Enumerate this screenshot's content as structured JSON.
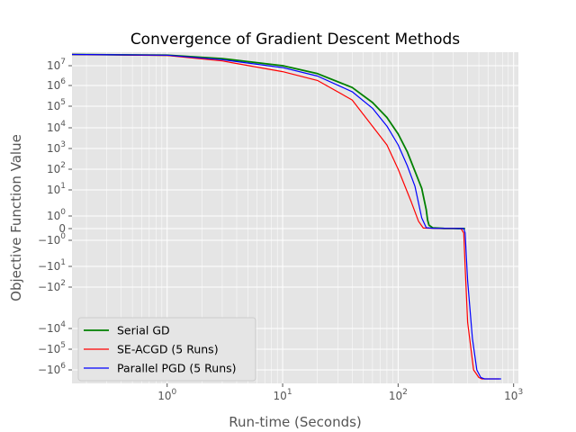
{
  "chart_data": {
    "type": "line",
    "title": "Convergence of Gradient Descent Methods",
    "xlabel": "Run-time (Seconds)",
    "ylabel": "Objective Function Value",
    "x_scale": "log",
    "y_scale": "symlog",
    "xlim": [
      0.15,
      1100
    ],
    "x_ticks": [
      {
        "value": 1,
        "base": "10",
        "exp": "0"
      },
      {
        "value": 10,
        "base": "10",
        "exp": "1"
      },
      {
        "value": 100,
        "base": "10",
        "exp": "2"
      },
      {
        "value": 1000,
        "base": "10",
        "exp": "3"
      }
    ],
    "y_ticks": [
      {
        "value": 10000000,
        "sign": "",
        "base": "10",
        "exp": "7"
      },
      {
        "value": 1000000,
        "sign": "",
        "base": "10",
        "exp": "6"
      },
      {
        "value": 100000,
        "sign": "",
        "base": "10",
        "exp": "5"
      },
      {
        "value": 10000,
        "sign": "",
        "base": "10",
        "exp": "4"
      },
      {
        "value": 1000,
        "sign": "",
        "base": "10",
        "exp": "3"
      },
      {
        "value": 100,
        "sign": "",
        "base": "10",
        "exp": "2"
      },
      {
        "value": 10,
        "sign": "",
        "base": "10",
        "exp": "1"
      },
      {
        "value": 1,
        "sign": "",
        "base": "10",
        "exp": "0"
      },
      {
        "value": 0,
        "plain": "0"
      },
      {
        "value": -1,
        "sign": "−",
        "base": "10",
        "exp": "0"
      },
      {
        "value": -10,
        "sign": "−",
        "base": "10",
        "exp": "1"
      },
      {
        "value": -100,
        "sign": "−",
        "base": "10",
        "exp": "2"
      },
      {
        "value": -10000,
        "sign": "−",
        "base": "10",
        "exp": "4"
      },
      {
        "value": -100000,
        "sign": "−",
        "base": "10",
        "exp": "5"
      },
      {
        "value": -1000000,
        "sign": "−",
        "base": "10",
        "exp": "6"
      }
    ],
    "grid": true,
    "legend_position": "lower-left",
    "series": [
      {
        "name": "Serial GD",
        "color": "#008000",
        "points": [
          [
            0.15,
            30000000
          ],
          [
            1,
            28000000
          ],
          [
            3,
            20000000
          ],
          [
            10,
            10000000
          ],
          [
            20,
            4000000
          ],
          [
            40,
            800000
          ],
          [
            60,
            150000
          ],
          [
            80,
            30000
          ],
          [
            100,
            5000
          ],
          [
            120,
            700
          ],
          [
            140,
            80
          ],
          [
            160,
            12
          ],
          [
            175,
            2
          ],
          [
            180,
            0.6
          ],
          [
            185,
            0.2
          ],
          [
            200,
            0.04
          ],
          [
            250,
            0.01
          ],
          [
            300,
            0.005
          ],
          [
            380,
            0.001
          ]
        ]
      },
      {
        "name": "SE-ACGD (5 Runs)",
        "color": "#ff0000",
        "points": [
          [
            0.15,
            30000000
          ],
          [
            1,
            27000000
          ],
          [
            3,
            16000000
          ],
          [
            10,
            5000000
          ],
          [
            20,
            1800000
          ],
          [
            40,
            200000
          ],
          [
            80,
            1500
          ],
          [
            100,
            100
          ],
          [
            130,
            4
          ],
          [
            150,
            0.5
          ],
          [
            165,
            0.03
          ],
          [
            200,
            0.015
          ],
          [
            300,
            0.008
          ],
          [
            350,
            0.005
          ],
          [
            370,
            -0.3
          ],
          [
            380,
            -10
          ],
          [
            400,
            -5000
          ],
          [
            450,
            -1000000
          ],
          [
            500,
            -1800000
          ],
          [
            530,
            -2000000
          ],
          [
            750,
            -2000000
          ]
        ]
      },
      {
        "name": "Parallel PGD (5 Runs)",
        "color": "#0000ff",
        "points": [
          [
            0.15,
            30000000
          ],
          [
            1,
            28000000
          ],
          [
            3,
            18000000
          ],
          [
            10,
            8000000
          ],
          [
            20,
            3000000
          ],
          [
            40,
            500000
          ],
          [
            60,
            80000
          ],
          [
            80,
            12000
          ],
          [
            100,
            1500
          ],
          [
            120,
            150
          ],
          [
            140,
            15
          ],
          [
            160,
            0.8
          ],
          [
            175,
            0.05
          ],
          [
            200,
            0.02
          ],
          [
            300,
            0.01
          ],
          [
            370,
            0.005
          ],
          [
            380,
            -0.3
          ],
          [
            400,
            -50
          ],
          [
            440,
            -30000
          ],
          [
            480,
            -1000000
          ],
          [
            520,
            -1800000
          ],
          [
            560,
            -2000000
          ],
          [
            780,
            -2000000
          ]
        ]
      }
    ]
  }
}
